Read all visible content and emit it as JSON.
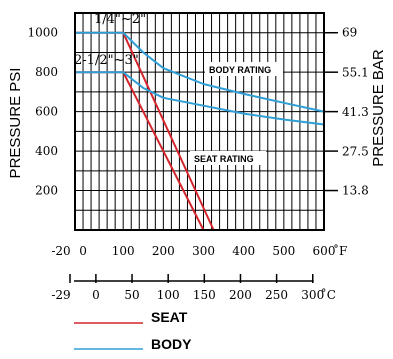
{
  "chart_data": {
    "type": "line",
    "ylabel_left": "PRESSURE PSI",
    "ylabel_right": "PRESSURE BAR",
    "y_left_ticks": [
      "1000",
      "800",
      "600",
      "400",
      "200"
    ],
    "y_left_values": [
      1000,
      800,
      600,
      400,
      200
    ],
    "y_right_ticks": [
      "69",
      "55.1",
      "41.3",
      "27.5",
      "13.8"
    ],
    "y_right_values": [
      69,
      55.1,
      41.3,
      27.5,
      13.8
    ],
    "x_f_ticks": [
      "-20",
      "0",
      "100",
      "200",
      "300",
      "400",
      "500",
      "600"
    ],
    "x_f_values": [
      -20,
      0,
      100,
      200,
      300,
      400,
      500,
      600
    ],
    "x_f_unit": "˚F",
    "x_c_ticks": [
      "-29",
      "0",
      "50",
      "100",
      "150",
      "200",
      "250",
      "300"
    ],
    "x_c_values": [
      -29,
      0,
      50,
      100,
      150,
      200,
      250,
      300
    ],
    "x_c_unit": "˚C",
    "xlim_f": [
      -20,
      600
    ],
    "ylim_psi": [
      0,
      1100
    ],
    "grid": true,
    "annotations": {
      "size_small": "1/4\"~2\"",
      "size_large": "2-1/2\"~3\"",
      "body_rating": "BODY RATING",
      "seat_rating": "SEAT RATING"
    },
    "series": [
      {
        "name": "SEAT",
        "group": "1/4\"~2\"",
        "color": "#d4262c",
        "x": [
          -20,
          100,
          325
        ],
        "y": [
          1000,
          1000,
          0
        ]
      },
      {
        "name": "SEAT",
        "group": "2-1/2\"~3\"",
        "color": "#d4262c",
        "x": [
          -20,
          100,
          300
        ],
        "y": [
          800,
          800,
          0
        ]
      },
      {
        "name": "BODY",
        "group": "1/4\"~2\"",
        "color": "#2f9fd6",
        "x": [
          -20,
          100,
          150,
          200,
          300,
          400,
          500,
          600
        ],
        "y": [
          1000,
          1000,
          900,
          820,
          740,
          690,
          645,
          600
        ]
      },
      {
        "name": "BODY",
        "group": "2-1/2\"~3\"",
        "color": "#2f9fd6",
        "x": [
          -20,
          100,
          150,
          200,
          300,
          400,
          500,
          600
        ],
        "y": [
          800,
          800,
          720,
          670,
          630,
          590,
          560,
          535
        ]
      }
    ],
    "legend": [
      {
        "label": "SEAT",
        "color": "#d4262c"
      },
      {
        "label": "BODY",
        "color": "#2f9fd6"
      }
    ]
  }
}
